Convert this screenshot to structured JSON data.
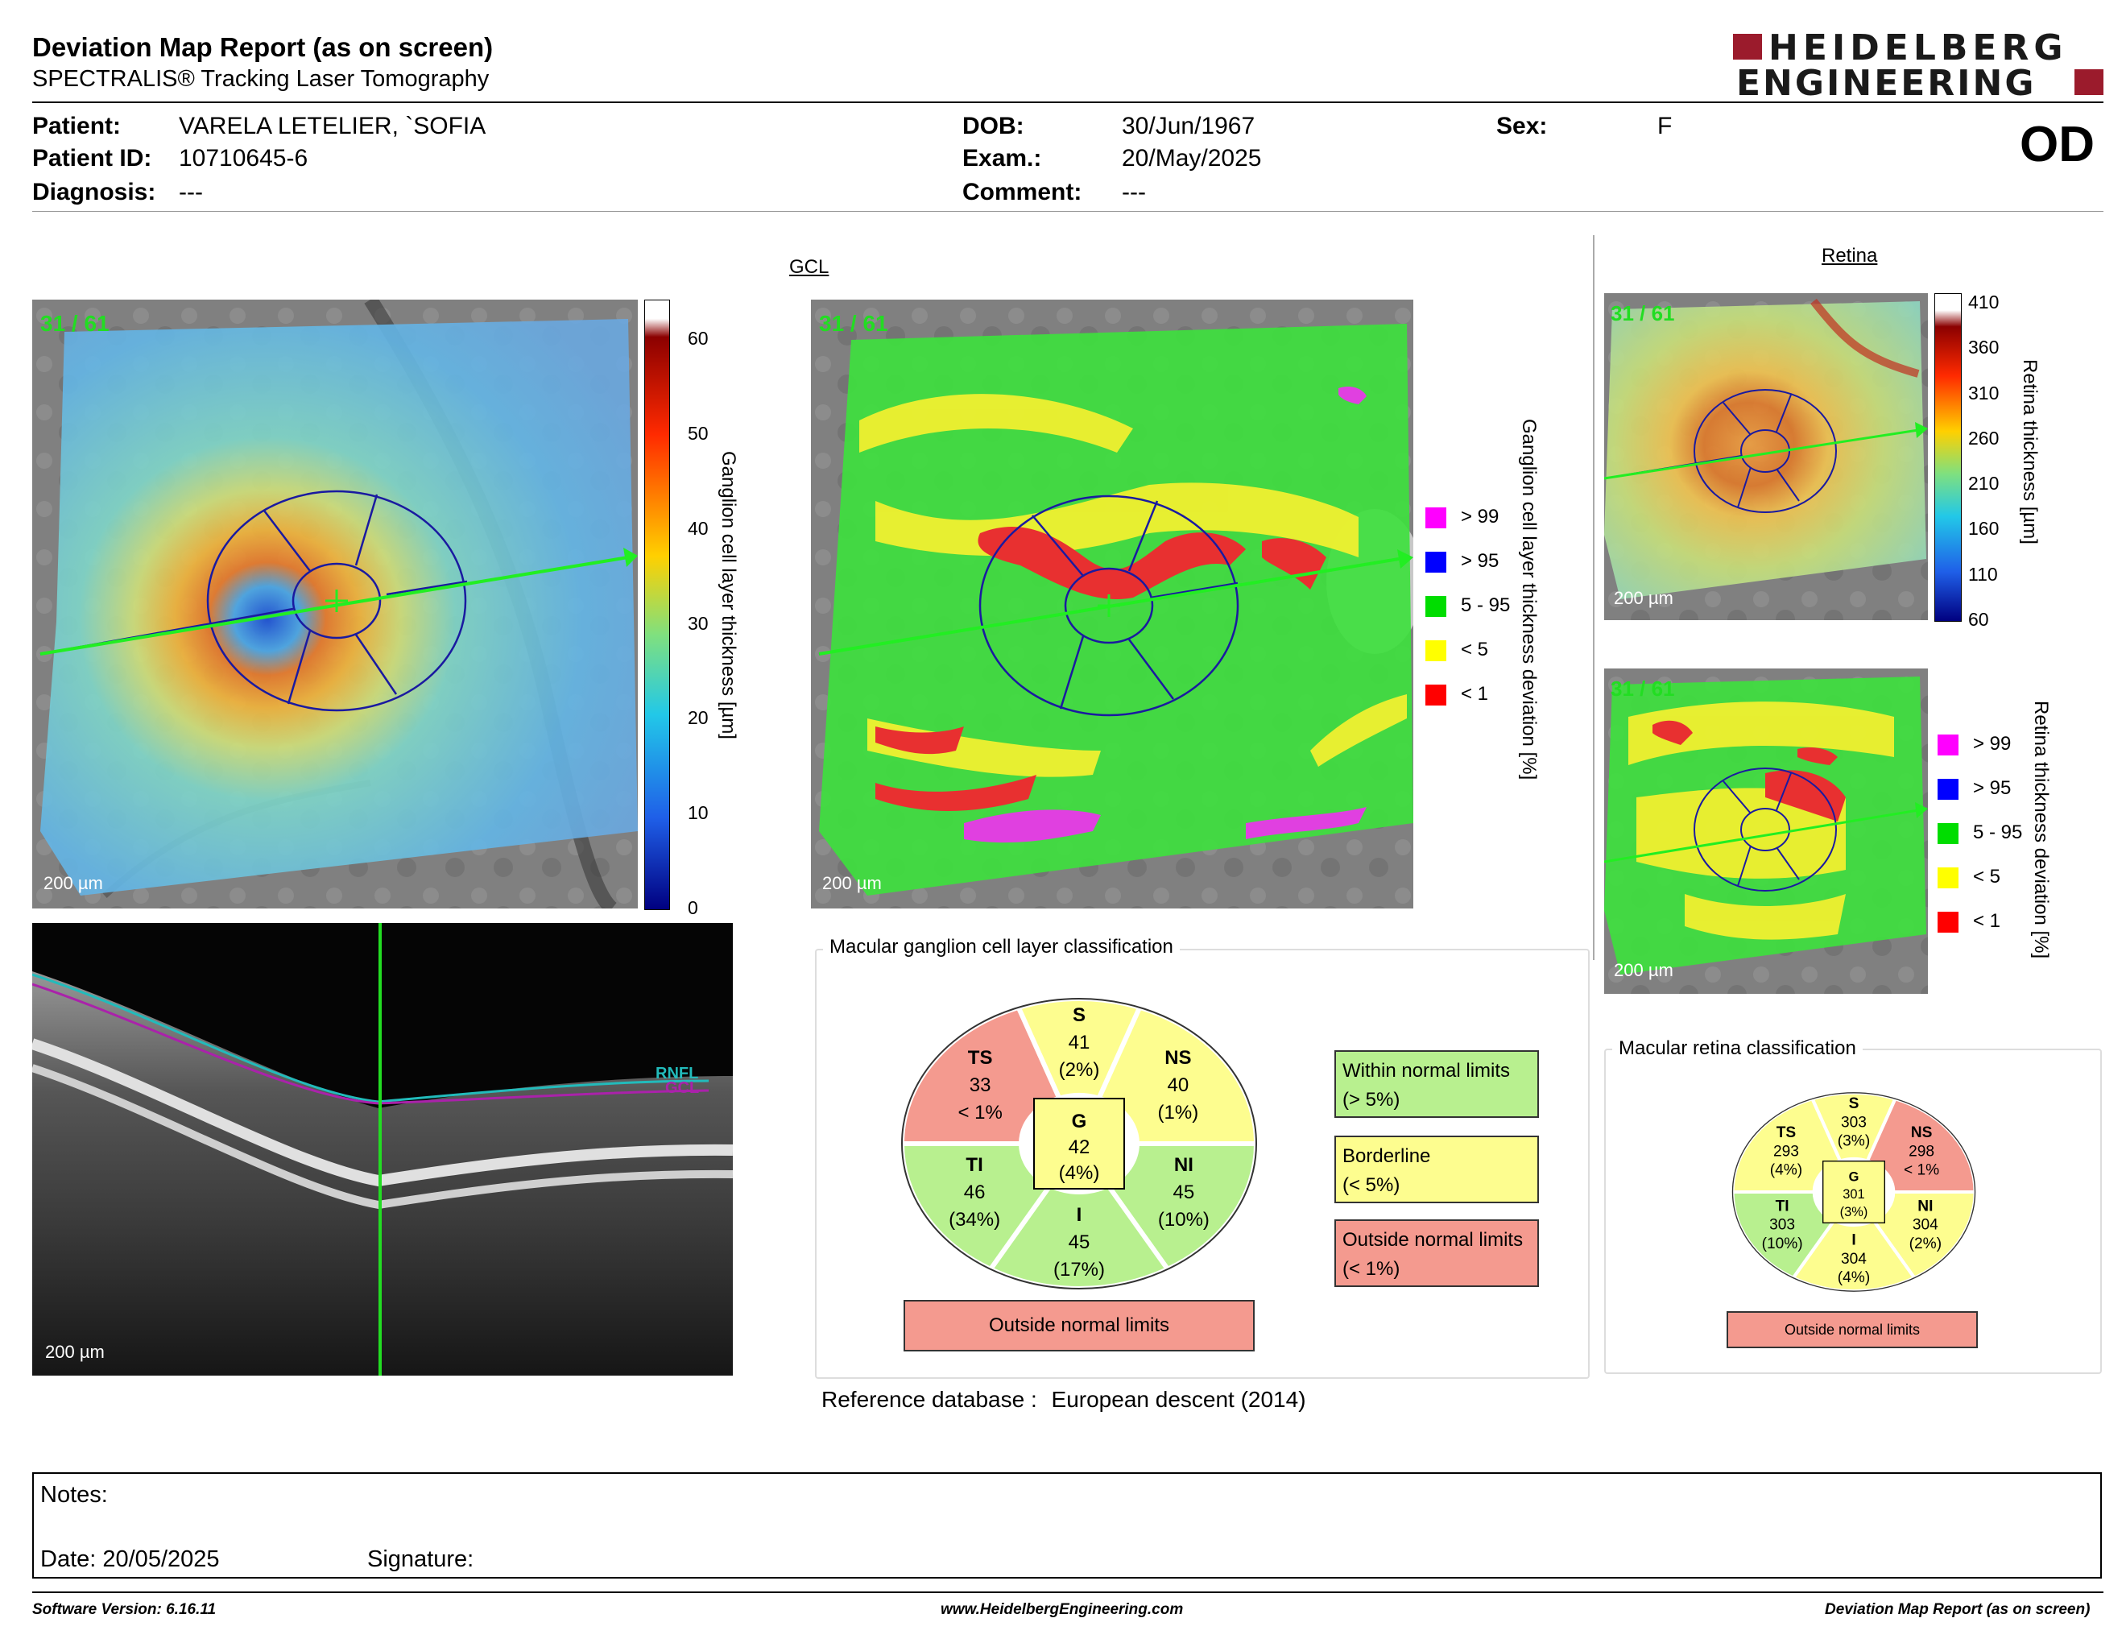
{
  "header": {
    "title": "Deviation Map Report (as on screen)",
    "subtitle": "SPECTRALIS® Tracking Laser Tomography",
    "logo_line1": "HEIDELBERG",
    "logo_line2": "ENGINEERING"
  },
  "patient": {
    "patient_label": "Patient:",
    "patient_value": "VARELA LETELIER, `SOFIA",
    "id_label": "Patient ID:",
    "id_value": "10710645-6",
    "diagnosis_label": "Diagnosis:",
    "diagnosis_value": "---",
    "dob_label": "DOB:",
    "dob_value": "30/Jun/1967",
    "exam_label": "Exam.:",
    "exam_value": "20/May/2025",
    "comment_label": "Comment:",
    "comment_value": "---",
    "sex_label": "Sex:",
    "sex_value": "F",
    "eye": "OD"
  },
  "gcl": {
    "caption": "GCL",
    "frame_label": "31 / 61",
    "scale_label": "200 µm",
    "thickness_axis_label": "Ganglion cell layer thickness [µm]",
    "thickness_ticks": [
      "60",
      "50",
      "40",
      "30",
      "20",
      "10",
      "0"
    ],
    "deviation_axis_label": "Ganglion cell layer thickness deviation [%]",
    "legend": [
      {
        "label": "> 99",
        "color": "#ff00ff"
      },
      {
        "label": "> 95",
        "color": "#0000ff"
      },
      {
        "label": "5 - 95",
        "color": "#00dd00"
      },
      {
        "label": "< 5",
        "color": "#ffff00"
      },
      {
        "label": "< 1",
        "color": "#ff0000"
      }
    ]
  },
  "oct": {
    "scale_label": "200 µm",
    "rnfl_label": "RNFL",
    "gcl_label": "GCL"
  },
  "retina": {
    "caption": "Retina",
    "frame_label": "31 / 61",
    "scale_label": "200 µm",
    "thickness_axis_label": "Retina thickness [µm]",
    "thickness_ticks": [
      "410",
      "360",
      "310",
      "260",
      "210",
      "160",
      "110",
      "60"
    ],
    "deviation_axis_label": "Retina thickness deviation [%]",
    "legend": [
      {
        "label": "> 99",
        "color": "#ff00ff"
      },
      {
        "label": "> 95",
        "color": "#0000ff"
      },
      {
        "label": "5 - 95",
        "color": "#00dd00"
      },
      {
        "label": "< 5",
        "color": "#ffff00"
      },
      {
        "label": "< 1",
        "color": "#ff0000"
      }
    ]
  },
  "gcl_classification": {
    "title": "Macular ganglion cell layer classification",
    "sectors": {
      "S": {
        "name": "S",
        "value": "41",
        "pct": "(2%)"
      },
      "TS": {
        "name": "TS",
        "value": "33",
        "pct": "< 1%"
      },
      "NS": {
        "name": "NS",
        "value": "40",
        "pct": "(1%)"
      },
      "TI": {
        "name": "TI",
        "value": "46",
        "pct": "(34%)"
      },
      "NI": {
        "name": "NI",
        "value": "45",
        "pct": "(10%)"
      },
      "I": {
        "name": "I",
        "value": "45",
        "pct": "(17%)"
      },
      "G": {
        "name": "G",
        "value": "42",
        "pct": "(4%)"
      }
    },
    "result": "Outside normal limits",
    "key": {
      "within_1": "Within normal limits",
      "within_2": "(> 5%)",
      "border_1": "Borderline",
      "border_2": "(< 5%)",
      "outside_1": "Outside normal limits",
      "outside_2": "(< 1%)"
    },
    "colors": {
      "within": "#b8f08f",
      "borderline": "#fdfd8f",
      "outside": "#f49a8f"
    }
  },
  "retina_classification": {
    "title": "Macular retina classification",
    "sectors": {
      "S": {
        "name": "S",
        "value": "303",
        "pct": "(3%)"
      },
      "TS": {
        "name": "TS",
        "value": "293",
        "pct": "(4%)"
      },
      "NS": {
        "name": "NS",
        "value": "298",
        "pct": "< 1%"
      },
      "TI": {
        "name": "TI",
        "value": "303",
        "pct": "(10%)"
      },
      "NI": {
        "name": "NI",
        "value": "304",
        "pct": "(2%)"
      },
      "I": {
        "name": "I",
        "value": "304",
        "pct": "(4%)"
      },
      "G": {
        "name": "G",
        "value": "301",
        "pct": "(3%)"
      }
    },
    "result": "Outside normal limits"
  },
  "reference": {
    "label": "Reference database :",
    "value": "European descent (2014)"
  },
  "notes": {
    "label": "Notes:",
    "date_label": "Date: 20/05/2025",
    "signature_label": "Signature:"
  },
  "footer": {
    "software": "Software Version: 6.16.11",
    "website": "www.HeidelbergEngineering.com",
    "report": "Deviation Map Report (as on screen)"
  }
}
